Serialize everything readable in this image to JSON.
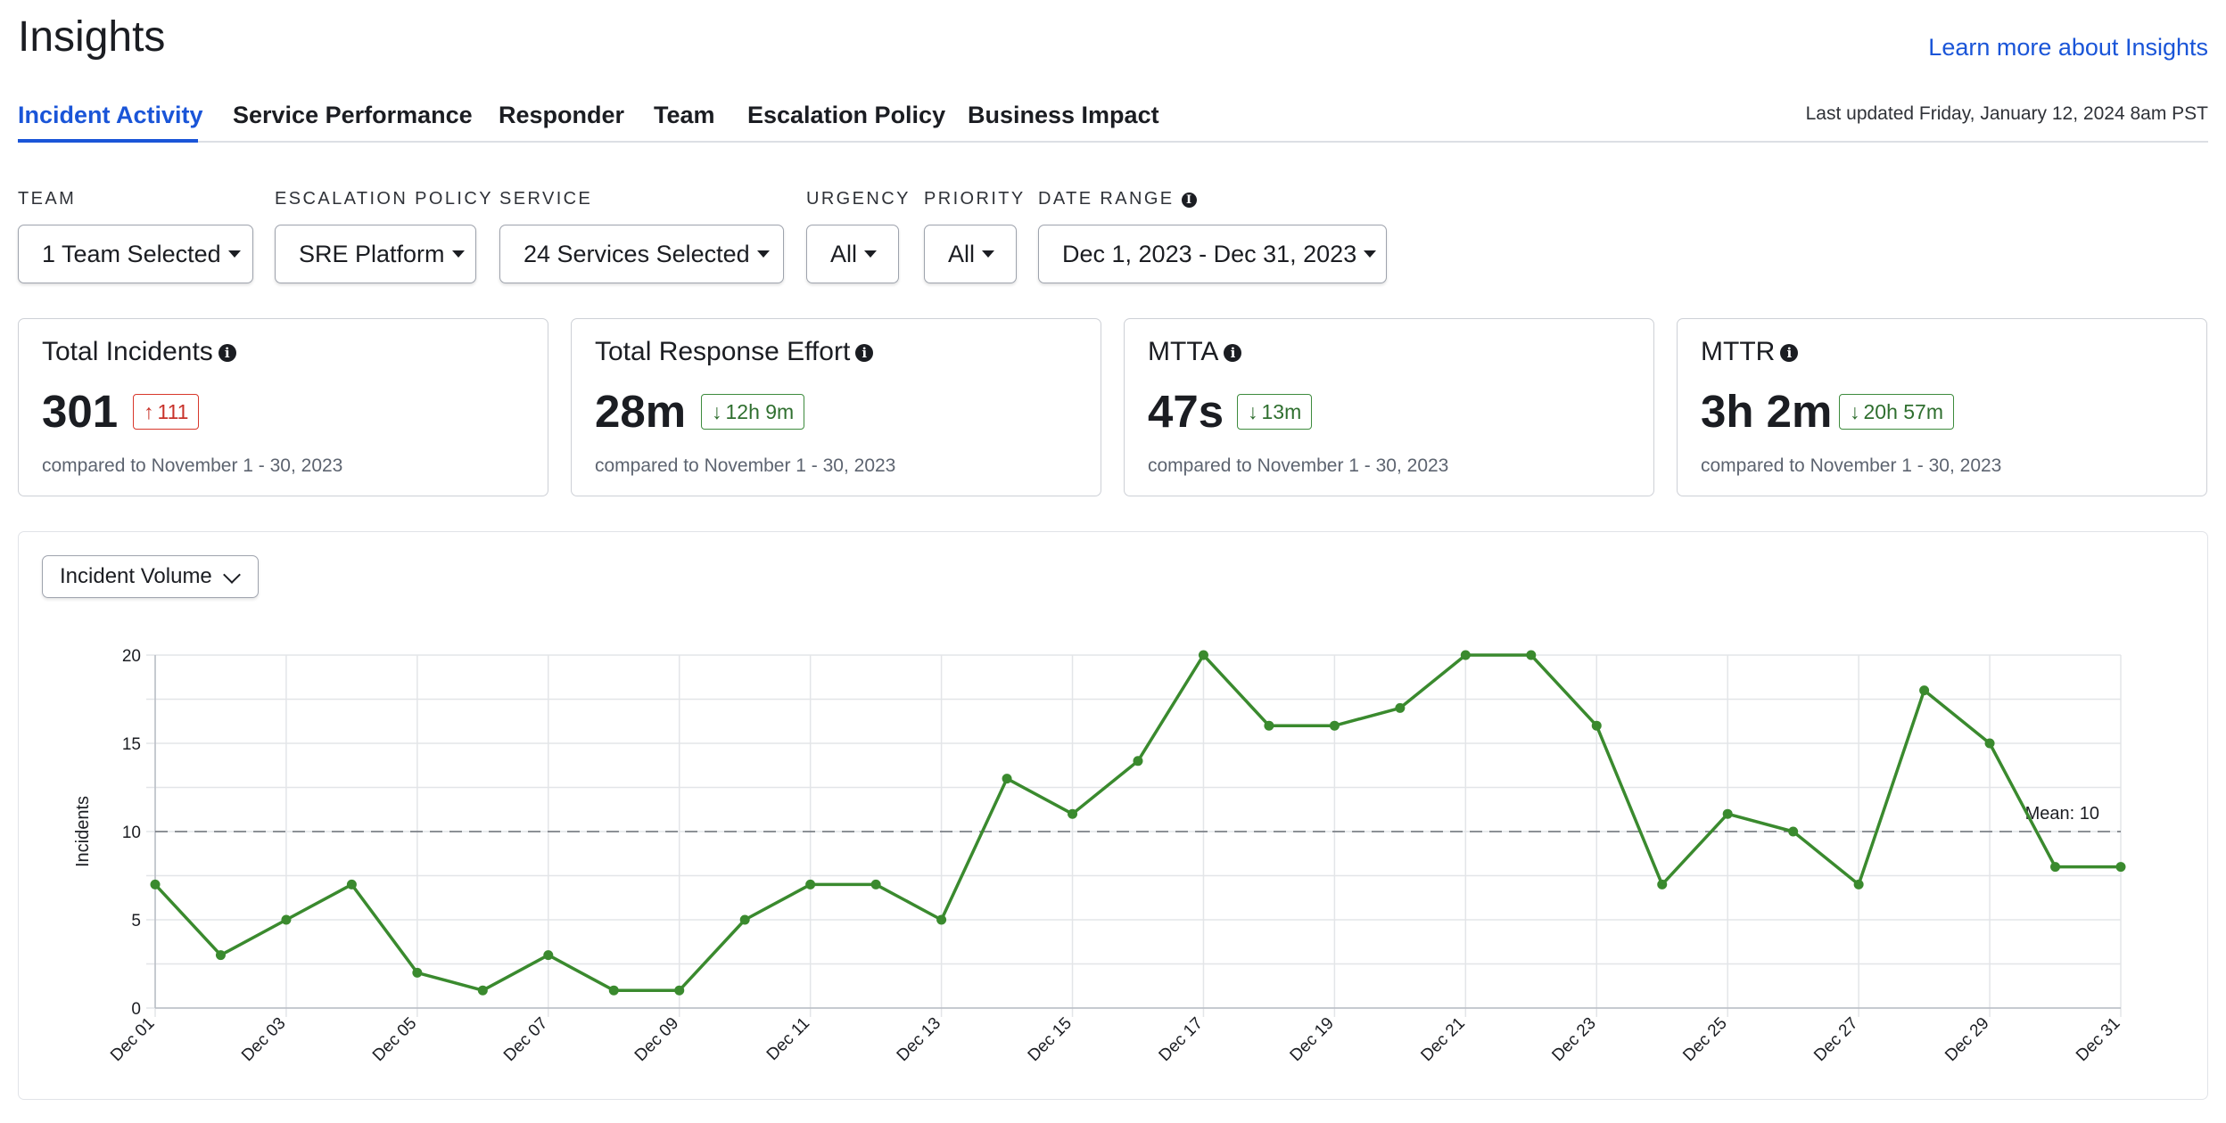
{
  "header": {
    "title": "Insights",
    "learn_more": "Learn more about Insights"
  },
  "tabs": [
    {
      "label": "Incident Activity",
      "active": true
    },
    {
      "label": "Service Performance",
      "active": false
    },
    {
      "label": "Responder",
      "active": false
    },
    {
      "label": "Team",
      "active": false
    },
    {
      "label": "Escalation Policy",
      "active": false
    },
    {
      "label": "Business Impact",
      "active": false
    }
  ],
  "last_updated": "Last updated Friday, January 12, 2024 8am PST",
  "filters": {
    "team": {
      "label": "TEAM",
      "value": "1 Team Selected"
    },
    "escalation_policy": {
      "label": "ESCALATION POLICY",
      "value": "SRE Platform"
    },
    "service": {
      "label": "SERVICE",
      "value": "24 Services Selected"
    },
    "urgency": {
      "label": "URGENCY",
      "value": "All"
    },
    "priority": {
      "label": "PRIORITY",
      "value": "All"
    },
    "date_range": {
      "label": "DATE RANGE",
      "value": "Dec 1, 2023 - Dec 31, 2023"
    }
  },
  "cards": [
    {
      "title": "Total Incidents",
      "value": "301",
      "delta": "111",
      "direction": "up",
      "compare": "compared to November 1 - 30, 2023"
    },
    {
      "title": "Total Response Effort",
      "value": "28m",
      "delta": "12h 9m",
      "direction": "down",
      "compare": "compared to November 1 - 30, 2023"
    },
    {
      "title": "MTTA",
      "value": "47s",
      "delta": "13m",
      "direction": "down",
      "compare": "compared to November 1 - 30, 2023"
    },
    {
      "title": "MTTR",
      "value": "3h 2m",
      "delta": "20h 57m",
      "direction": "down",
      "compare": "compared to November 1 - 30, 2023"
    }
  ],
  "metric_selector": {
    "value": "Incident Volume"
  },
  "colors": {
    "accent": "#1a55d8",
    "series_line": "#3a8a2e",
    "delta_up": "#d8372b",
    "delta_down": "#3d8b3d"
  },
  "chart_data": {
    "type": "line",
    "title": "",
    "xlabel": "",
    "ylabel": "Incidents",
    "x": [
      "Dec 01",
      "Dec 02",
      "Dec 03",
      "Dec 04",
      "Dec 05",
      "Dec 06",
      "Dec 07",
      "Dec 08",
      "Dec 09",
      "Dec 10",
      "Dec 11",
      "Dec 12",
      "Dec 13",
      "Dec 14",
      "Dec 15",
      "Dec 16",
      "Dec 17",
      "Dec 18",
      "Dec 19",
      "Dec 20",
      "Dec 21",
      "Dec 22",
      "Dec 23",
      "Dec 24",
      "Dec 25",
      "Dec 26",
      "Dec 27",
      "Dec 28",
      "Dec 29",
      "Dec 30",
      "Dec 31"
    ],
    "x_tick_labels": [
      "Dec 01",
      "Dec 03",
      "Dec 05",
      "Dec 07",
      "Dec 09",
      "Dec 11",
      "Dec 13",
      "Dec 15",
      "Dec 17",
      "Dec 19",
      "Dec 21",
      "Dec 23",
      "Dec 25",
      "Dec 27",
      "Dec 29",
      "Dec 31"
    ],
    "values": [
      7,
      3,
      5,
      7,
      2,
      1,
      3,
      1,
      1,
      5,
      7,
      7,
      5,
      13,
      11,
      14,
      20,
      16,
      16,
      17,
      20,
      20,
      16,
      7,
      11,
      10,
      7,
      18,
      15,
      8,
      8
    ],
    "ylim": [
      0,
      20
    ],
    "y_ticks": [
      0,
      5,
      10,
      15,
      20
    ],
    "mean": 10,
    "mean_label": "Mean: 10",
    "grid": true,
    "legend": "none"
  }
}
